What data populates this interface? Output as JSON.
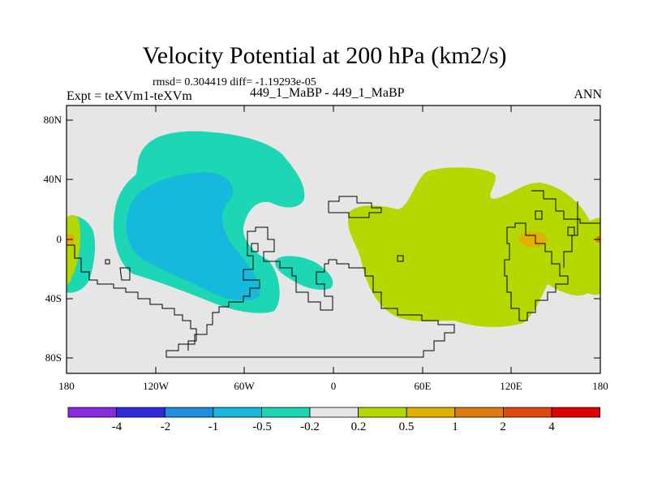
{
  "title": "Velocity Potential at 200 hPa (km2/s)",
  "stats": "rmsd= 0.304419 diff= -1.19293e-05",
  "expt": "Expt = teXVm1-teXVm",
  "case": "449_1_MaBP - 449_1_MaBP",
  "season": "ANN",
  "lat_ticks": [
    "80N",
    "40N",
    "0",
    "40S",
    "80S"
  ],
  "lon_ticks": [
    "180",
    "120W",
    "60W",
    "0",
    "60E",
    "120E",
    "180"
  ],
  "colorbar": {
    "labels": [
      "-4",
      "-2",
      "-1",
      "-0.5",
      "-0.2",
      "0.2",
      "0.5",
      "1",
      "2",
      "4"
    ],
    "colors": [
      "#8a2be2",
      "#2b2bd8",
      "#1e8fe0",
      "#16b8dc",
      "#1cd6b4",
      "#e6e6e6",
      "#b4d800",
      "#e2b000",
      "#e07b10",
      "#e04a10",
      "#e00000"
    ]
  },
  "colors": {
    "background": "#e6e6e6",
    "teal": "#1cd6b4",
    "cyan": "#16b8dc",
    "yellowgreen": "#b4d800",
    "orange": "#e2b000",
    "orange_red": "#e07b10"
  }
}
